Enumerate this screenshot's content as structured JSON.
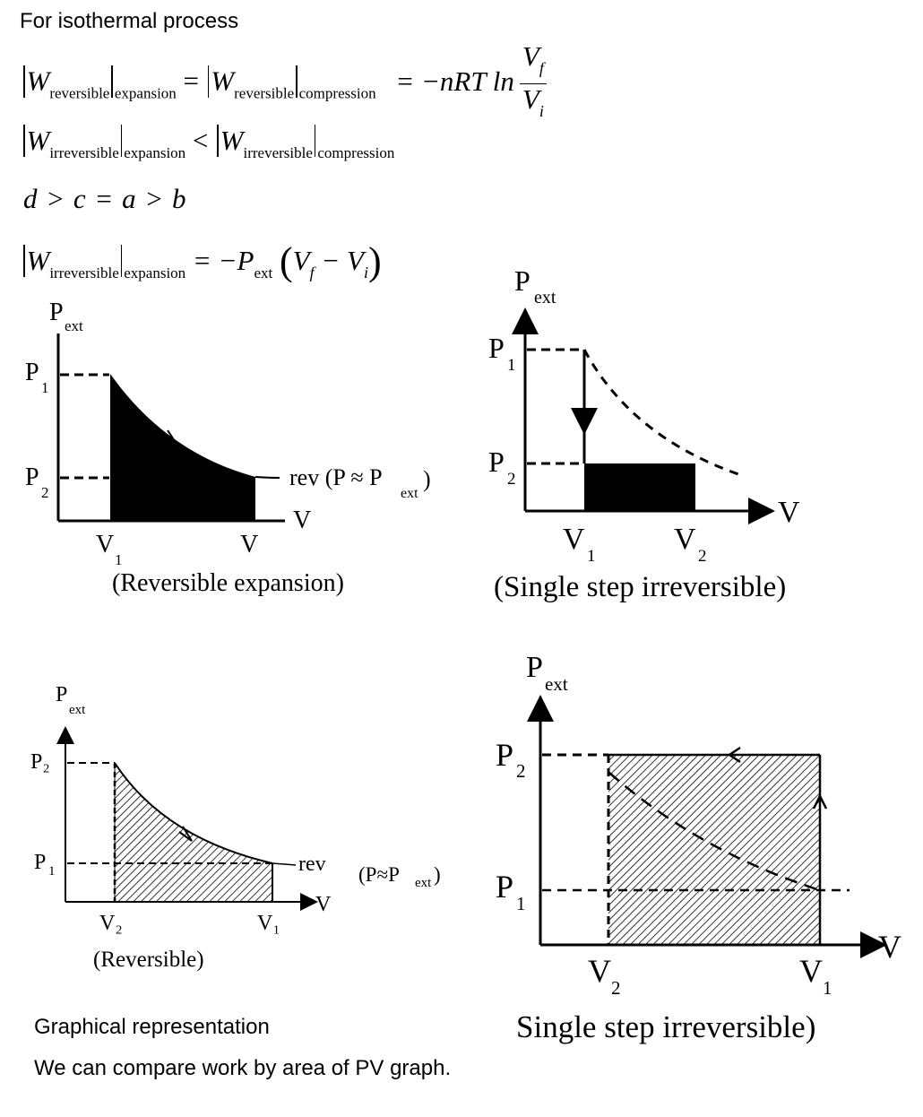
{
  "heading": "For isothermal process",
  "equations": {
    "eq1": {
      "W": "W",
      "sub_reversible": "reversible",
      "sub_expansion": "expansion",
      "sub_compression": "compression",
      "eq": "=",
      "rhs_prefix": "= −nRT ln",
      "frac_num_V": "V",
      "frac_num_sub": "f",
      "frac_den_V": "V",
      "frac_den_sub": "i"
    },
    "eq2": {
      "W": "W",
      "sub_irreversible": "irreversible",
      "sub_expansion": "expansion",
      "sub_compression": "compression",
      "lt": "<"
    },
    "eq3": "d > c = a > b",
    "eq4": {
      "W": "W",
      "sub_irreversible": "irreversible",
      "sub_expansion": "expansion",
      "rhs": "= −P",
      "ext": "ext",
      "open": "(",
      "Vf": "V",
      "f": "f",
      "minus": " − ",
      "Vi": "V",
      "i": "i",
      "close": ")"
    }
  },
  "graph_a": {
    "P": "P",
    "ext": "ext",
    "P1": "P",
    "P1_sub": "1",
    "P2": "P",
    "P2_sub": "2",
    "rev_label": "rev  (P ≈ P",
    "rev_sub": "ext",
    "rev_close": ")",
    "axis_V": "V",
    "V1": "V",
    "V1_sub": "1",
    "V_end": "V",
    "caption": "(Reversible expansion)"
  },
  "graph_b": {
    "P": "P",
    "ext": "ext",
    "P1": "P",
    "P1_sub": "1",
    "P2": "P",
    "P2_sub": "2",
    "axis_V": "V",
    "V1": "V",
    "V1_sub": "1",
    "V2": "V",
    "V2_sub": "2",
    "caption": "(Single step irreversible)"
  },
  "graph_c": {
    "P": "P",
    "ext": "ext",
    "P2": "P₂",
    "P1": "P",
    "P1_sub": "1",
    "rev": "rev",
    "note": "(P≈P",
    "note_sub": "ext",
    "note_close": ")",
    "axis_V": "V",
    "V2": "V₂",
    "V1": "V₁",
    "caption": "(Reversible)"
  },
  "graph_d": {
    "P": "P",
    "ext": "ext",
    "P2": "P",
    "P2_sub": "2",
    "P1": "P",
    "P1_sub": "1",
    "axis_V": "V",
    "V2": "V",
    "V2_sub": "2",
    "V1": "V",
    "V1_sub": "1",
    "caption": "Single step irreversible)"
  },
  "footer": {
    "line1": "Graphical representation",
    "line2": "We can compare work by area of PV graph."
  }
}
